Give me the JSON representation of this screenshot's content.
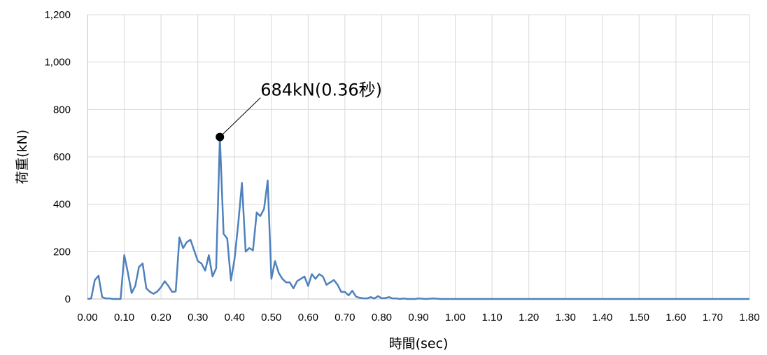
{
  "chart_data": {
    "type": "line",
    "xlabel": "時間(sec)",
    "ylabel": "荷重(kN)",
    "xlim": [
      0,
      1.8
    ],
    "ylim": [
      0,
      1200
    ],
    "grid": true,
    "x_ticks": [
      "0.00",
      "0.10",
      "0.20",
      "0.30",
      "0.40",
      "0.50",
      "0.60",
      "0.70",
      "0.80",
      "0.90",
      "1.00",
      "1.10",
      "1.20",
      "1.30",
      "1.40",
      "1.50",
      "1.60",
      "1.70",
      "1.80"
    ],
    "y_ticks": [
      "0",
      "200",
      "400",
      "600",
      "800",
      "1,000",
      "1,200"
    ],
    "line_color": "#4f81bd",
    "series": [
      {
        "x": [
          0.0,
          0.01,
          0.02,
          0.03,
          0.04,
          0.05,
          0.06,
          0.07,
          0.08,
          0.09,
          0.1,
          0.11,
          0.12,
          0.13,
          0.14,
          0.15,
          0.16,
          0.17,
          0.18,
          0.19,
          0.2,
          0.21,
          0.22,
          0.23,
          0.24,
          0.25,
          0.26,
          0.27,
          0.28,
          0.29,
          0.3,
          0.31,
          0.32,
          0.33,
          0.34,
          0.35,
          0.36,
          0.37,
          0.38,
          0.39,
          0.4,
          0.41,
          0.42,
          0.43,
          0.44,
          0.45,
          0.46,
          0.47,
          0.48,
          0.49,
          0.5,
          0.51,
          0.52,
          0.53,
          0.54,
          0.55,
          0.56,
          0.57,
          0.58,
          0.59,
          0.6,
          0.61,
          0.62,
          0.63,
          0.64,
          0.65,
          0.66,
          0.67,
          0.68,
          0.69,
          0.7,
          0.71,
          0.72,
          0.73,
          0.74,
          0.75,
          0.76,
          0.77,
          0.78,
          0.79,
          0.8,
          0.81,
          0.82,
          0.83,
          0.84,
          0.85,
          0.86,
          0.87,
          0.88,
          0.89,
          0.9,
          0.92,
          0.94,
          0.96,
          0.98,
          1.0,
          1.05,
          1.1,
          1.2,
          1.3,
          1.4,
          1.5,
          1.6,
          1.7,
          1.8
        ],
        "y": [
          0,
          2,
          80,
          98,
          8,
          2,
          2,
          0,
          0,
          0,
          185,
          110,
          25,
          55,
          135,
          150,
          45,
          30,
          22,
          32,
          50,
          75,
          55,
          30,
          32,
          260,
          215,
          240,
          250,
          205,
          160,
          150,
          120,
          185,
          95,
          130,
          684,
          275,
          255,
          78,
          170,
          320,
          490,
          200,
          215,
          205,
          365,
          350,
          380,
          500,
          85,
          160,
          110,
          85,
          70,
          70,
          45,
          75,
          85,
          95,
          55,
          105,
          85,
          105,
          95,
          60,
          70,
          80,
          60,
          30,
          30,
          15,
          35,
          10,
          5,
          3,
          2,
          8,
          2,
          12,
          3,
          4,
          8,
          2,
          2,
          0,
          2,
          0,
          0,
          0,
          2,
          0,
          2,
          0,
          0,
          0,
          0,
          0,
          0,
          0,
          0,
          0,
          0,
          0,
          0
        ]
      }
    ],
    "annotation": {
      "text": "684kN(0.36秒)",
      "x": 0.36,
      "y": 684
    }
  }
}
